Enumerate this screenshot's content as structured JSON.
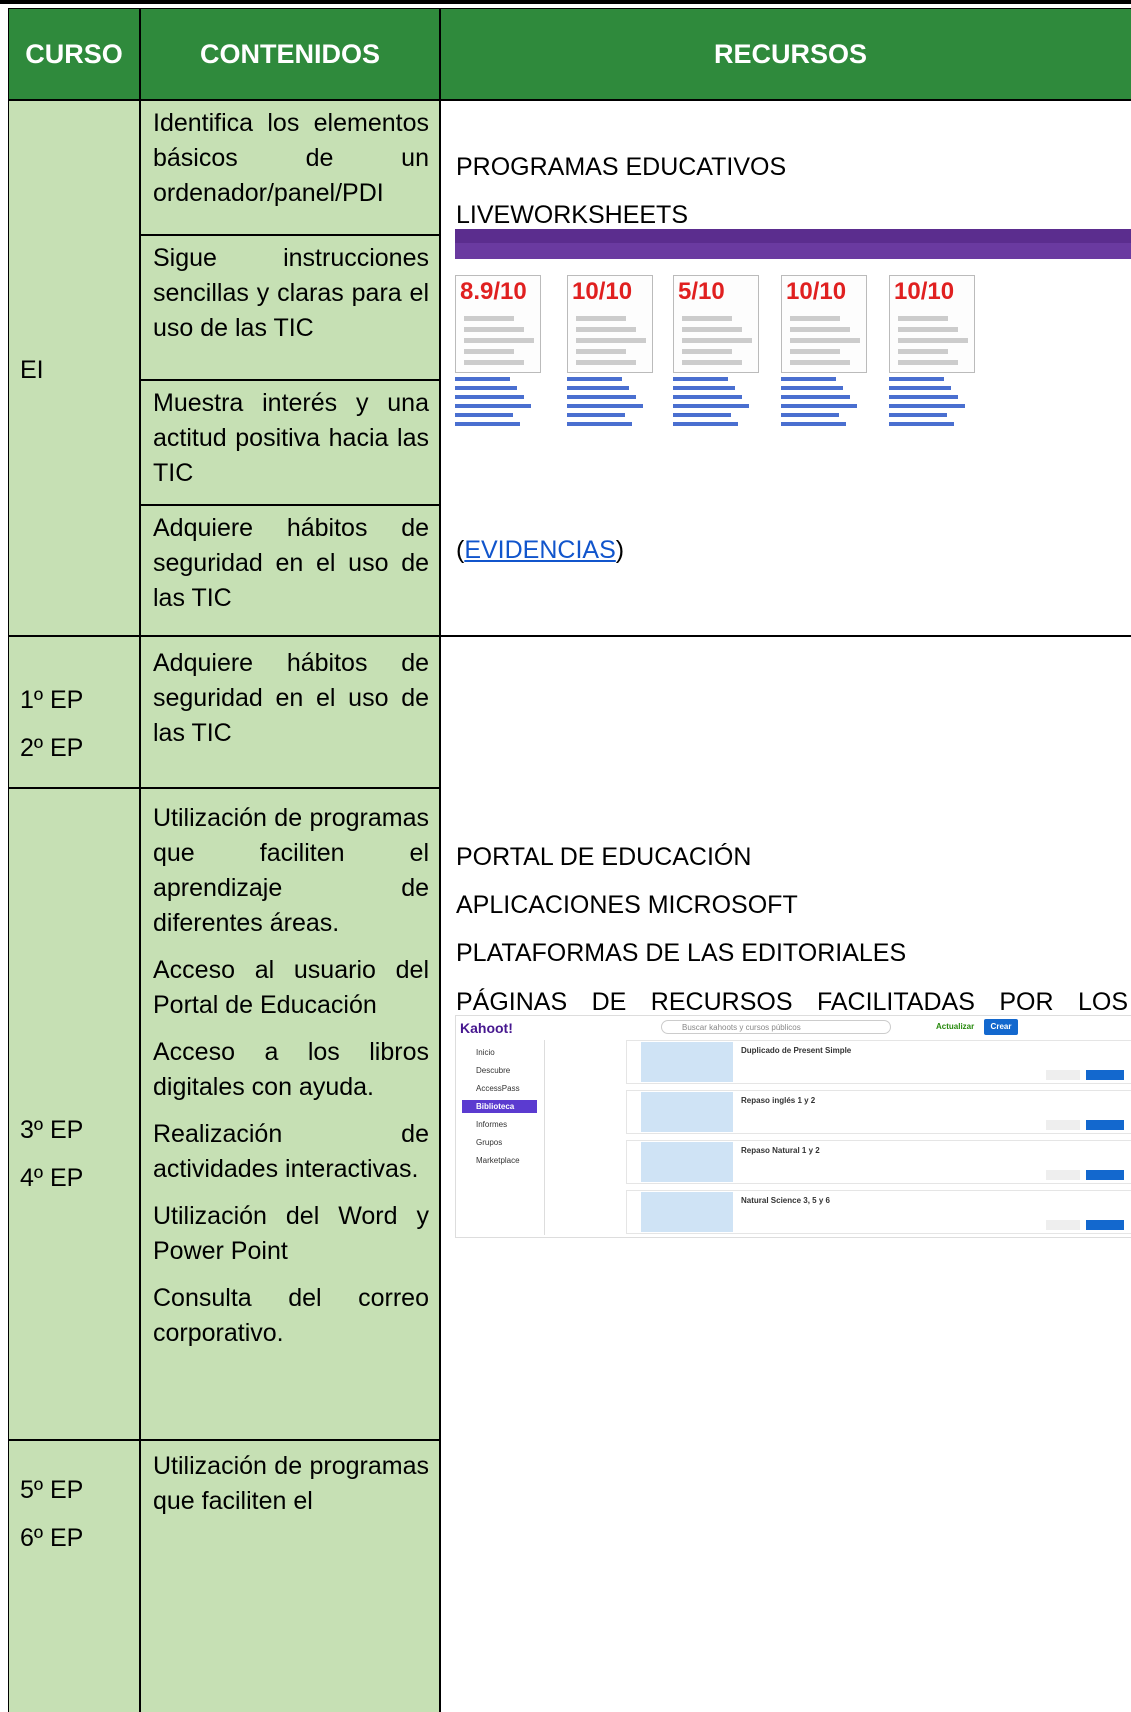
{
  "table": {
    "headers": [
      "CURSO",
      "CONTENIDOS",
      "RECURSOS"
    ],
    "rows": [
      {
        "curso": [
          "EI"
        ],
        "contenidos": [
          "Identifica los elementos básicos de un ordenador/panel/PDI",
          "Sigue instrucciones sencillas y claras para el uso de las TIC",
          "Muestra interés y una actitud positiva hacia las TIC",
          "Adquiere hábitos de seguridad en el uso de las TIC"
        ]
      },
      {
        "curso": [
          "1º EP",
          "2º EP"
        ],
        "contenidos": [
          "Adquiere hábitos de seguridad en el uso de las TIC"
        ]
      },
      {
        "curso": [
          "3º EP",
          "4º EP"
        ],
        "contenidos": [
          "Utilización de programas que faciliten el aprendizaje de diferentes áreas.",
          "Acceso al usuario del Portal de Educación",
          "Acceso a los libros digitales con ayuda.",
          "Realización de actividades interactivas.",
          "Utilización del Word y Power Point",
          "Consulta del correo corporativo."
        ]
      },
      {
        "curso": [
          "5º EP",
          "6º EP"
        ],
        "contenidos": [
          "Utilización de programas que faciliten el"
        ]
      }
    ],
    "recursos": [
      {
        "lines": [
          "PROGRAMAS EDUCATIVOS",
          "LIVEWORKSHEETS"
        ],
        "screenshot": {
          "scores": [
            "8.9/10",
            "10/10",
            "5/10",
            "10/10",
            "10/10"
          ]
        },
        "evidence": {
          "open": "(",
          "link": "EVIDENCIAS",
          "close": ")"
        }
      },
      {
        "lines": [
          "PORTAL DE EDUCACIÓN",
          "APLICACIONES MICROSOFT",
          "PLATAFORMAS DE LAS EDITORIALES",
          "PÁGINAS DE RECURSOS FACILITADAS POR LOS DOCENTES (LIVEWORKSHEETS, KAHOOT, GENIALLY…)"
        ],
        "screenshot": {
          "logo": "Kahoot!",
          "search": "Buscar kahoots y cursos públicos",
          "buttons": [
            "Actualizar",
            "Crear"
          ],
          "menu": [
            "Inicio",
            "Descubre",
            "AccessPass",
            "Biblioteca",
            "Informes",
            "Grupos",
            "Marketplace"
          ],
          "items": [
            "Duplicado de Present Simple",
            "Repaso inglés 1 y 2",
            "Repaso Natural 1 y 2",
            "Natural Science 3, 5 y 6"
          ]
        }
      }
    ]
  }
}
